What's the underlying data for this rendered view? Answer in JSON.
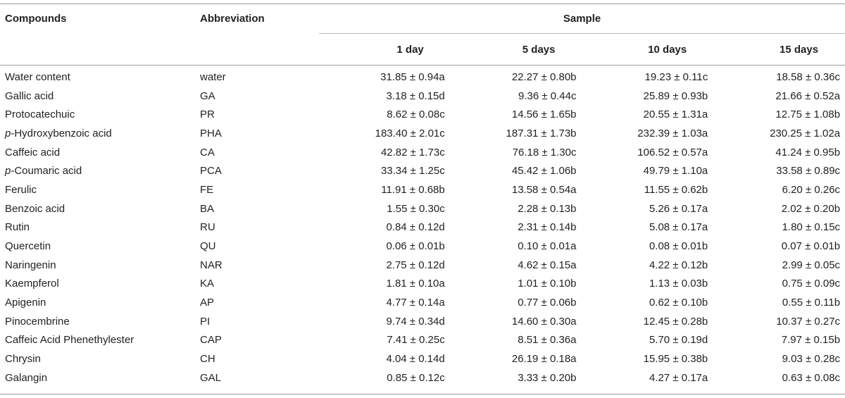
{
  "table": {
    "headers": {
      "compounds": "Compounds",
      "abbreviation": "Abbreviation",
      "sample": "Sample",
      "days": [
        "1 day",
        "5 days",
        "10 days",
        "15 days"
      ]
    },
    "rows": [
      {
        "prefix": "",
        "name": "Water content",
        "abbr": "water",
        "values": [
          "31.85 ± 0.94a",
          "22.27 ± 0.80b",
          "19.23 ± 0.11c",
          "18.58 ± 0.36c"
        ]
      },
      {
        "prefix": "",
        "name": "Gallic acid",
        "abbr": "GA",
        "values": [
          "3.18 ± 0.15d",
          "9.36 ± 0.44c",
          "25.89 ± 0.93b",
          "21.66 ± 0.52a"
        ]
      },
      {
        "prefix": "",
        "name": "Protocatechuic",
        "abbr": "PR",
        "values": [
          "8.62 ± 0.08c",
          "14.56 ± 1.65b",
          "20.55 ± 1.31a",
          "12.75 ± 1.08b"
        ]
      },
      {
        "prefix": "p",
        "name": "-Hydroxybenzoic acid",
        "abbr": "PHA",
        "values": [
          "183.40 ± 2.01c",
          "187.31 ± 1.73b",
          "232.39 ± 1.03a",
          "230.25 ± 1.02a"
        ]
      },
      {
        "prefix": "",
        "name": "Caffeic acid",
        "abbr": "CA",
        "values": [
          "42.82 ± 1.73c",
          "76.18 ± 1.30c",
          "106.52 ± 0.57a",
          "41.24 ± 0.95b"
        ]
      },
      {
        "prefix": "p",
        "name": "-Coumaric acid",
        "abbr": "PCA",
        "values": [
          "33.34 ± 1.25c",
          "45.42 ± 1.06b",
          "49.79 ± 1.10a",
          "33.58 ± 0.89c"
        ]
      },
      {
        "prefix": "",
        "name": "Ferulic",
        "abbr": "FE",
        "values": [
          "11.91 ± 0.68b",
          "13.58 ± 0.54a",
          "11.55 ± 0.62b",
          "6.20 ± 0.26c"
        ]
      },
      {
        "prefix": "",
        "name": "Benzoic acid",
        "abbr": "BA",
        "values": [
          "1.55 ± 0.30c",
          "2.28 ± 0.13b",
          "5.26 ± 0.17a",
          "2.02 ± 0.20b"
        ]
      },
      {
        "prefix": "",
        "name": "Rutin",
        "abbr": "RU",
        "values": [
          "0.84 ± 0.12d",
          "2.31 ± 0.14b",
          "5.08 ± 0.17a",
          "1.80 ± 0.15c"
        ]
      },
      {
        "prefix": "",
        "name": "Quercetin",
        "abbr": "QU",
        "values": [
          "0.06 ± 0.01b",
          "0.10 ± 0.01a",
          "0.08 ± 0.01b",
          "0.07 ± 0.01b"
        ]
      },
      {
        "prefix": "",
        "name": "Naringenin",
        "abbr": "NAR",
        "values": [
          "2.75 ± 0.12d",
          "4.62 ± 0.15a",
          "4.22 ± 0.12b",
          "2.99 ± 0.05c"
        ]
      },
      {
        "prefix": "",
        "name": "Kaempferol",
        "abbr": "KA",
        "values": [
          "1.81 ± 0.10a",
          "1.01 ± 0.10b",
          "1.13 ± 0.03b",
          "0.75 ± 0.09c"
        ]
      },
      {
        "prefix": "",
        "name": "Apigenin",
        "abbr": "AP",
        "values": [
          "4.77 ± 0.14a",
          "0.77 ± 0.06b",
          "0.62 ± 0.10b",
          "0.55 ± 0.11b"
        ]
      },
      {
        "prefix": "",
        "name": "Pinocembrine",
        "abbr": "PI",
        "values": [
          "9.74 ± 0.34d",
          "14.60 ± 0.30a",
          "12.45 ± 0.28b",
          "10.37 ± 0.27c"
        ]
      },
      {
        "prefix": "",
        "name": "Caffeic Acid Phenethylester",
        "abbr": "CAP",
        "values": [
          "7.41 ± 0.25c",
          "8.51 ± 0.36a",
          "5.70 ± 0.19d",
          "7.97 ± 0.15b"
        ]
      },
      {
        "prefix": "",
        "name": "Chrysin",
        "abbr": "CH",
        "values": [
          "4.04 ± 0.14d",
          "26.19 ± 0.18a",
          "15.95 ± 0.38b",
          "9.03 ± 0.28c"
        ]
      },
      {
        "prefix": "",
        "name": "Galangin",
        "abbr": "GAL",
        "values": [
          "0.85 ± 0.12c",
          "3.33 ± 0.20b",
          "4.27 ± 0.17a",
          "0.63 ± 0.08c"
        ]
      }
    ]
  }
}
